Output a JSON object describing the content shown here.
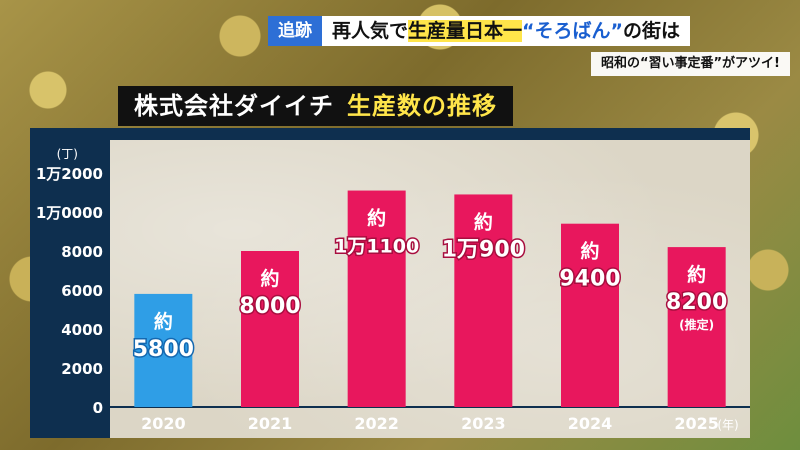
{
  "header": {
    "label": "追跡",
    "headline_pre": "再人気で",
    "headline_highlight": "生産量日本一",
    "headline_quote": "“そろばん”",
    "headline_post": "の街は",
    "subline": "昭和の“習い事定番”がアツイ!"
  },
  "chart_title": {
    "main": "株式会社ダイイチ",
    "accent": "生産数の推移"
  },
  "colors": {
    "bar_past": "#2f9ee6",
    "bar_main": "#e8175d",
    "panel": "#0e2f4f",
    "headline_highlight": "#ffe54a",
    "label_bg": "#2d6fd6"
  },
  "chart_data": {
    "type": "bar",
    "title": "株式会社ダイイチ 生産数の推移",
    "y_unit": "(丁)",
    "x_unit": "(年)",
    "ylim": [
      0,
      12000
    ],
    "yticks": [
      0,
      2000,
      4000,
      6000,
      8000,
      10000,
      12000
    ],
    "ytick_labels": [
      "0",
      "2000",
      "4000",
      "6000",
      "8000",
      "1万0000",
      "1万2000"
    ],
    "categories": [
      "2020",
      "2021",
      "2022",
      "2023",
      "2024",
      "2025"
    ],
    "values": [
      5800,
      8000,
      11100,
      10900,
      9400,
      8200
    ],
    "value_prefix": "約",
    "value_labels": [
      "5800",
      "8000",
      "1万1100",
      "1万900",
      "9400",
      "8200"
    ],
    "notes": [
      "",
      "",
      "",
      "",
      "",
      "(推定)"
    ],
    "bar_colors": [
      "#2f9ee6",
      "#e8175d",
      "#e8175d",
      "#e8175d",
      "#e8175d",
      "#e8175d"
    ],
    "grid": false
  }
}
